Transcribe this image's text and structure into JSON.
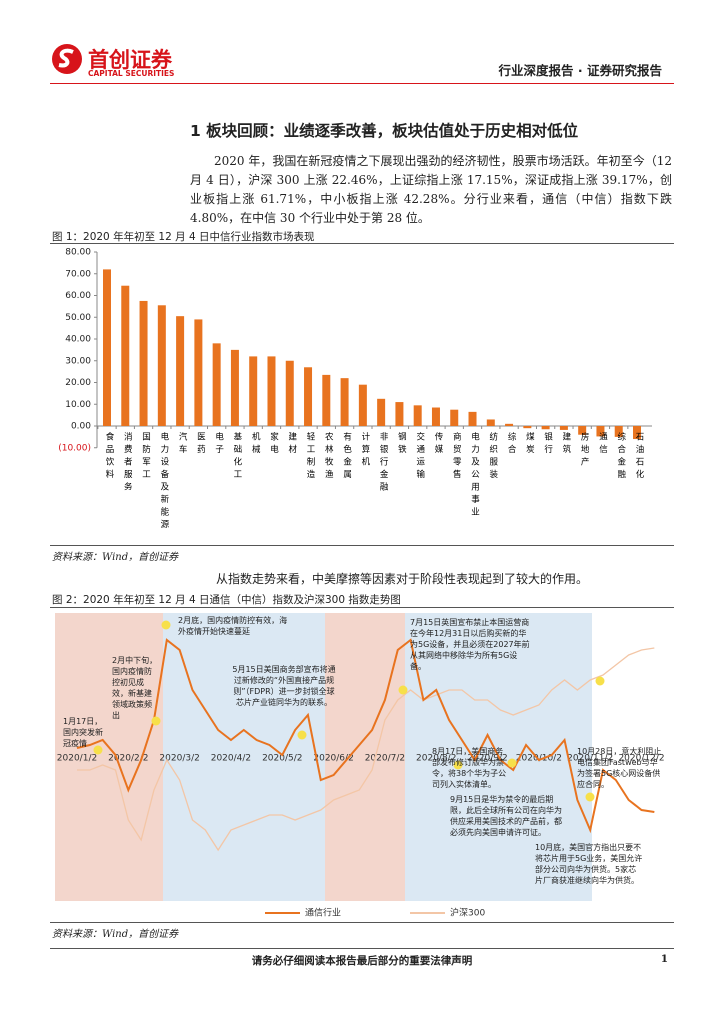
{
  "header": {
    "logo_cn": "首创证券",
    "logo_en": "CAPITAL SECURITIES",
    "report_type": "行业深度报告 · 证券研究报告"
  },
  "section_title": "1  板块回顾：业绩逐季改善，板块估值处于历史相对低位",
  "paragraph1": "2020 年，我国在新冠疫情之下展现出强劲的经济韧性，股票市场活跃。年初至今（12 月 4 日），沪深 300 上涨 22.46%，上证综指上涨 17.15%，深证成指上涨 39.17%，创业板指上涨 61.71%，中小板指上涨 42.28%。分行业来看，通信（中信）指数下跌 4.80%，在中信 30 个行业中处于第 28 位。",
  "figure1": {
    "caption": "图 1：2020 年年初至 12 月 4 日中信行业指数市场表现",
    "source": "资料来源：Wind，首创证券"
  },
  "paragraph2": "从指数走势来看，中美摩擦等因素对于阶段性表现起到了较大的作用。",
  "figure2": {
    "caption": "图 2：2020 年年初至 12 月 4 日通信（中信）指数及沪深300 指数走势图",
    "source": "资料来源：Wind，首创证券"
  },
  "footer": {
    "notice": "请务必仔细阅读本报告最后部分的重要法律声明",
    "page": "1"
  },
  "chart_data": [
    {
      "type": "bar",
      "color": "#e8731f",
      "categories": [
        "食品饮料",
        "消费者服务",
        "国防军工",
        "电力设备及新能源",
        "汽车",
        "医药",
        "电子",
        "基础化工",
        "机械",
        "家电",
        "建材",
        "轻工制造",
        "农林牧渔",
        "有色金属",
        "计算机",
        "非银行金融",
        "钢铁",
        "交通运输",
        "传媒",
        "商贸零售",
        "电力及公用事业",
        "纺织服装",
        "综合",
        "煤炭",
        "银行",
        "建筑",
        "房地产",
        "通信",
        "综合金融",
        "石油石化"
      ],
      "values": [
        72,
        64.5,
        57.5,
        55.5,
        50.5,
        49,
        38,
        35,
        32,
        32,
        30,
        27,
        23.5,
        22,
        19,
        12.5,
        11,
        9.5,
        8.5,
        7.5,
        6.5,
        3,
        1,
        -1,
        -1.5,
        -1.8,
        -4,
        -4.8,
        -5,
        -6
      ],
      "ylim": [
        -10,
        80
      ],
      "yticks": [
        {
          "value": -10,
          "label": "(10.00)"
        },
        {
          "value": 0,
          "label": "0.00"
        },
        {
          "value": 10,
          "label": "10.00"
        },
        {
          "value": 20,
          "label": "20.00"
        },
        {
          "value": 30,
          "label": "30.00"
        },
        {
          "value": 40,
          "label": "40.00"
        },
        {
          "value": 50,
          "label": "50.00"
        },
        {
          "value": 60,
          "label": "60.00"
        },
        {
          "value": 70,
          "label": "70.00"
        },
        {
          "value": 80,
          "label": "80.00"
        }
      ]
    },
    {
      "type": "line",
      "categories": [
        "2020/1/2",
        null,
        null,
        null,
        "2020/2/2",
        null,
        null,
        null,
        "2020/3/2",
        null,
        null,
        null,
        "2020/4/2",
        null,
        null,
        null,
        "2020/5/2",
        null,
        null,
        null,
        "2020/6/2",
        null,
        null,
        null,
        "2020/7/2",
        null,
        null,
        null,
        "2020/8/2",
        null,
        null,
        null,
        "2020/9/2",
        null,
        null,
        null,
        "2020/10/2",
        null,
        null,
        null,
        "2020/11/2",
        null,
        null,
        null,
        "2020/12/2",
        null
      ],
      "ylim": [
        0,
        282
      ],
      "series": [
        {
          "name": "通信行业",
          "color": "#e8731f",
          "values": [
            147,
            150,
            155,
            140,
            105,
            135,
            175,
            255,
            245,
            205,
            185,
            165,
            155,
            165,
            155,
            150,
            140,
            165,
            180,
            115,
            120,
            135,
            150,
            165,
            195,
            245,
            255,
            195,
            205,
            175,
            155,
            135,
            160,
            135,
            125,
            150,
            135,
            140,
            155,
            95,
            65,
            125,
            115,
            95,
            85,
            83
          ]
        },
        {
          "name": "沪深300",
          "color": "#f3c6a6",
          "values": [
            125,
            125,
            130,
            125,
            75,
            55,
            105,
            135,
            115,
            75,
            65,
            45,
            65,
            70,
            75,
            80,
            80,
            75,
            80,
            85,
            95,
            100,
            105,
            125,
            175,
            195,
            205,
            195,
            200,
            205,
            205,
            195,
            195,
            185,
            180,
            185,
            190,
            205,
            215,
            205,
            215,
            220,
            230,
            240,
            245,
            247
          ]
        }
      ],
      "annotations": [
        "1月17日，国内突发新冠疫情",
        "2月中下旬，国内疫情防控初见成效，新基建领域政策频出",
        "2月底，国内疫情防控有效，海外疫情开始快速蔓延",
        "5月15日美国商务部宣布将通过新修改的“外国直接产品规则”（FDPR）进一步封锁全球芯片产业链同华为的联系。",
        "7月15日英国宣布禁止本国运营商在今年12月31日以后购买新的华为5G设备，并且必须在2027年前从其网络中移除华为所有5G设备。",
        "8月17日，美国商务部发布修订版华为禁令，将38个华为子公司列入实体清单。",
        "9月15日是华为禁令的最后期限，此后全球所有公司在向华为供应采用美国技术的产品前，都必须先向美国申请许可证。",
        "10月28日，意大利阻止电信集团Fastweb与华为签署5G核心网设备供应合同。",
        "10月底，美国官方指出只要不将芯片用于5G业务，美国允许部分公司向华为供货。5家芯片厂商获准继续向华为供货。"
      ]
    }
  ]
}
